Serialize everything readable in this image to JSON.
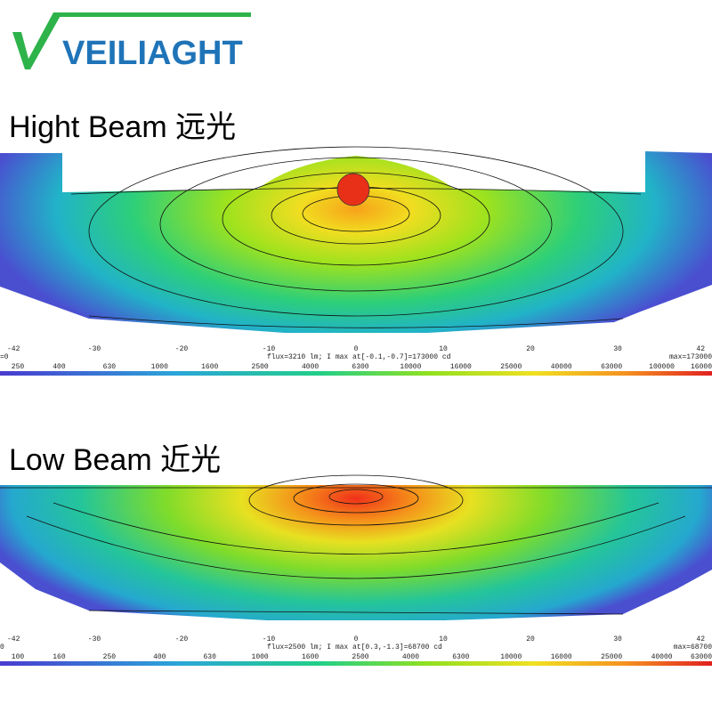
{
  "logo": {
    "text": "VEILIAGHT"
  },
  "panels": [
    {
      "title": "Hight Beam  远光",
      "axis": [
        "-42",
        "-30",
        "-20",
        "-10",
        "0",
        "10",
        "20",
        "30",
        "42"
      ],
      "left_note": "=0",
      "info": "flux=3210 lm; I max at[-0.1,-0.7]=173000 cd",
      "max": "max=173000",
      "scale": [
        "250",
        "400",
        "630",
        "1000",
        "1600",
        "2500",
        "4000",
        "6300",
        "10000",
        "16000",
        "25000",
        "40000",
        "63000",
        "100000",
        "16000"
      ]
    },
    {
      "title": "Low Beam 近光",
      "axis": [
        "-42",
        "-30",
        "-20",
        "-10",
        "0",
        "10",
        "20",
        "30",
        "42"
      ],
      "left_note": "0",
      "info": "flux=2500 lm; I max at[0.3,-1.3]=68700 cd",
      "max": "max=68700",
      "scale": [
        "100",
        "160",
        "250",
        "400",
        "630",
        "1000",
        "1600",
        "2500",
        "4000",
        "6300",
        "10000",
        "16000",
        "25000",
        "40000",
        "63000"
      ]
    }
  ]
}
